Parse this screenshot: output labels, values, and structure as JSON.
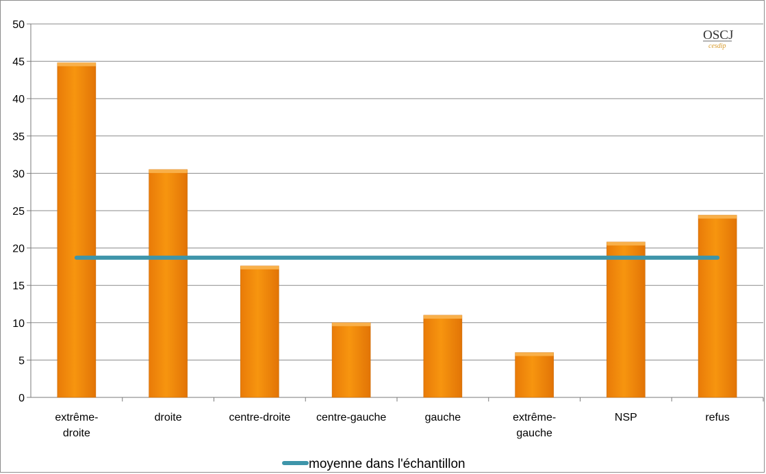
{
  "chart_data": {
    "type": "bar",
    "categories": [
      "extrême-droite",
      "droite",
      "centre-droite",
      "centre-gauche",
      "gauche",
      "extrême-gauche",
      "NSP",
      "refus"
    ],
    "category_lines": [
      [
        "extrême-",
        "droite"
      ],
      [
        "droite"
      ],
      [
        "centre-droite"
      ],
      [
        "centre-gauche"
      ],
      [
        "gauche"
      ],
      [
        "extrême-",
        "gauche"
      ],
      [
        "NSP"
      ],
      [
        "refus"
      ]
    ],
    "series": [
      {
        "values": [
          44.8,
          30.5,
          17.6,
          10.0,
          11.0,
          6.0,
          20.8,
          24.4
        ],
        "color": "#f28a0f"
      }
    ],
    "reference_line": {
      "name": "moyenne dans l'échantillon",
      "value": 18.7,
      "color": "#3e95aa"
    },
    "yticks": [
      0,
      5,
      10,
      15,
      20,
      25,
      30,
      35,
      40,
      45,
      50
    ],
    "ylim": [
      0,
      50
    ],
    "grid": true,
    "legend_position": "bottom",
    "logo": {
      "main": "OSCJ",
      "sub": "cesdip"
    }
  }
}
